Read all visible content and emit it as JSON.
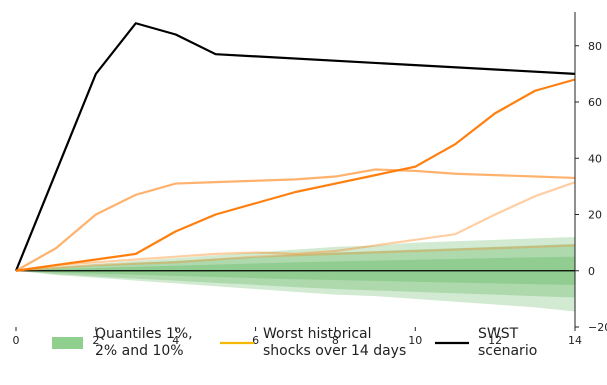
{
  "caption": "",
  "chart_data": {
    "type": "line",
    "xlim": [
      0,
      14
    ],
    "ylim": [
      -20,
      92
    ],
    "x_ticks": [
      0,
      2,
      4,
      6,
      8,
      10,
      12,
      14
    ],
    "y_ticks": [
      -20,
      0,
      20,
      40,
      60,
      80
    ],
    "y_axis_side": "right",
    "grid": false,
    "legend_placement": "bottom",
    "legend": [
      {
        "label_lines": [
          "Quantiles 1%,",
          "2% and 10%"
        ],
        "kind": "patch",
        "color": "#8fd08f"
      },
      {
        "label_lines": [
          "Worst historical",
          "shocks over 14 days"
        ],
        "kind": "line",
        "color": "#f5b800"
      },
      {
        "label_lines": [
          "SWST",
          "scenario"
        ],
        "kind": "line",
        "color": "#000000"
      }
    ],
    "bands": [
      {
        "quantile": "1%",
        "color": "#2ca02c",
        "opacity": 0.22,
        "x": [
          0,
          1,
          2,
          3,
          4,
          5,
          6,
          7,
          8,
          9,
          10,
          11,
          12,
          13,
          14
        ],
        "upper": [
          0,
          1.5,
          2.5,
          3.5,
          4.5,
          5.5,
          6.5,
          7.5,
          8.5,
          9,
          10,
          10.5,
          11,
          11.5,
          12
        ],
        "lower": [
          0,
          -1.5,
          -2.5,
          -3.5,
          -4.5,
          -5.5,
          -6.5,
          -7.5,
          -8.5,
          -9,
          -10,
          -11,
          -12,
          -13,
          -14.5
        ]
      },
      {
        "quantile": "2%",
        "color": "#2ca02c",
        "opacity": 0.22,
        "x": [
          0,
          1,
          2,
          3,
          4,
          5,
          6,
          7,
          8,
          9,
          10,
          11,
          12,
          13,
          14
        ],
        "upper": [
          0,
          1.2,
          2,
          2.8,
          3.5,
          4.3,
          5,
          5.8,
          6.5,
          7,
          7.5,
          8,
          8.5,
          9,
          9.5
        ],
        "lower": [
          0,
          -1.2,
          -2,
          -2.8,
          -3.5,
          -4.3,
          -5,
          -5.8,
          -6.5,
          -7,
          -7.5,
          -8,
          -8.5,
          -9,
          -9.5
        ]
      },
      {
        "quantile": "10%",
        "color": "#2ca02c",
        "opacity": 0.22,
        "x": [
          0,
          1,
          2,
          3,
          4,
          5,
          6,
          7,
          8,
          9,
          10,
          11,
          12,
          13,
          14
        ],
        "upper": [
          0,
          0.6,
          1,
          1.4,
          1.8,
          2.2,
          2.6,
          3,
          3.3,
          3.6,
          3.9,
          4.2,
          4.5,
          4.8,
          5
        ],
        "lower": [
          0,
          -0.6,
          -1,
          -1.4,
          -1.8,
          -2.2,
          -2.6,
          -3,
          -3.3,
          -3.6,
          -3.9,
          -4.2,
          -4.5,
          -4.8,
          -5
        ]
      }
    ],
    "series": [
      {
        "color": "#000000",
        "opacity": 1,
        "x": [
          0,
          2,
          3,
          4,
          5,
          14
        ],
        "y": [
          0,
          70,
          88,
          84,
          77,
          70
        ]
      },
      {
        "color": "#ff7f0e",
        "opacity": 1,
        "x": [
          0,
          1,
          2,
          3,
          4,
          5,
          6,
          7,
          8,
          9,
          10,
          11,
          12,
          13,
          14
        ],
        "y": [
          0,
          2,
          4,
          6,
          14,
          20,
          24,
          28,
          31,
          34,
          37,
          45,
          56,
          64,
          68
        ]
      },
      {
        "color": "#ff7f0e",
        "opacity": 0.6,
        "x": [
          0,
          1,
          2,
          3,
          4,
          5,
          6,
          7,
          8,
          9,
          10,
          11,
          12,
          13,
          14
        ],
        "y": [
          0,
          8,
          20,
          27,
          31,
          31.5,
          32,
          32.5,
          33.5,
          36,
          35.5,
          34.5,
          34,
          33.5,
          33
        ]
      },
      {
        "color": "#ff7f0e",
        "opacity": 0.38,
        "x": [
          0,
          1,
          2,
          3,
          4,
          5,
          6,
          7,
          8,
          9,
          10,
          11,
          12,
          13,
          14
        ],
        "y": [
          0,
          2,
          3,
          4,
          5,
          6,
          6.5,
          6,
          7,
          9,
          11,
          13,
          20,
          26.5,
          31.5
        ]
      },
      {
        "color": "#ff7f0e",
        "opacity": 0.3,
        "x": [
          0,
          2,
          4,
          6,
          8,
          10,
          12,
          14
        ],
        "y": [
          0,
          2,
          3,
          5,
          6,
          7,
          8,
          9
        ]
      }
    ],
    "zero_line": {
      "y": 0,
      "color": "#000000"
    }
  }
}
